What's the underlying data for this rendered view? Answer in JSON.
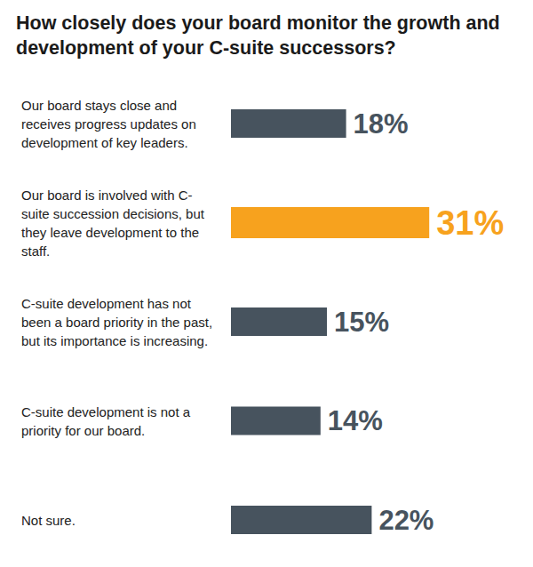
{
  "chart_data": {
    "type": "bar",
    "title": "How closely does your board monitor the growth and development of your C-suite successors?",
    "orientation": "horizontal",
    "categories": [
      "Our board stays close and receives progress updates on development of key leaders.",
      "Our board is involved with C-suite succession decisions, but they leave development to the staff.",
      "C-suite development has not been a board priority in the past, but its importance is increasing.",
      "C-suite development is not a priority for our board.",
      "Not sure."
    ],
    "values": [
      18,
      31,
      15,
      14,
      22
    ],
    "value_labels": [
      "18%",
      "31%",
      "15%",
      "14%",
      "22%"
    ],
    "colors": [
      "#47535e",
      "#f7a21e",
      "#47535e",
      "#47535e",
      "#47535e"
    ],
    "xlim": [
      0,
      45
    ],
    "data_labels": true,
    "grid": false,
    "tick_labels": "y"
  }
}
